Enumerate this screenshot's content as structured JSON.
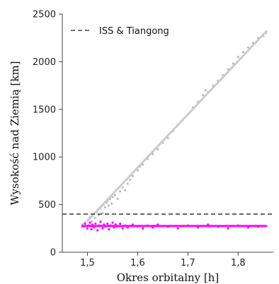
{
  "chart_data": {
    "type": "scatter",
    "title": "",
    "xlabel": "Okres orbitalny [h]",
    "ylabel": "Wysokość nad Ziemią [km]",
    "xlim": [
      1.45,
      1.87
    ],
    "ylim": [
      0,
      2500
    ],
    "x_ticks": [
      1.5,
      1.6,
      1.7,
      1.8
    ],
    "x_tick_labels": [
      "1,5",
      "1,6",
      "1,7",
      "1,8"
    ],
    "y_ticks": [
      0,
      500,
      1000,
      1500,
      2000,
      2500
    ],
    "y_tick_labels": [
      "0",
      "500",
      "1000",
      "1500",
      "2000",
      "2500"
    ],
    "grid": false,
    "legend_position": "top-left",
    "reference_line": {
      "label": "ISS & Tiangong",
      "y": 400,
      "style": "dashed",
      "color": "#222222"
    },
    "series": [
      {
        "color": "#bbbbbb",
        "kind": "points",
        "points": [
          [
            1.49,
            290
          ],
          [
            1.495,
            310
          ],
          [
            1.5,
            330
          ],
          [
            1.503,
            350
          ],
          [
            1.505,
            370
          ],
          [
            1.508,
            320
          ],
          [
            1.51,
            380
          ],
          [
            1.512,
            400
          ],
          [
            1.515,
            360
          ],
          [
            1.518,
            420
          ],
          [
            1.52,
            440
          ],
          [
            1.522,
            390
          ],
          [
            1.525,
            460
          ],
          [
            1.528,
            480
          ],
          [
            1.53,
            410
          ],
          [
            1.532,
            500
          ],
          [
            1.535,
            470
          ],
          [
            1.538,
            520
          ],
          [
            1.54,
            540
          ],
          [
            1.542,
            490
          ],
          [
            1.545,
            560
          ],
          [
            1.548,
            510
          ],
          [
            1.55,
            580
          ],
          [
            1.555,
            600
          ],
          [
            1.56,
            560
          ],
          [
            1.565,
            640
          ],
          [
            1.57,
            680
          ],
          [
            1.575,
            650
          ],
          [
            1.58,
            720
          ],
          [
            1.585,
            760
          ],
          [
            1.59,
            800
          ],
          [
            1.6,
            860
          ],
          [
            1.605,
            900
          ],
          [
            1.61,
            920
          ],
          [
            1.62,
            980
          ],
          [
            1.63,
            1030
          ],
          [
            1.64,
            1080
          ],
          [
            1.65,
            1150
          ],
          [
            1.66,
            1200
          ],
          [
            1.67,
            1270
          ],
          [
            1.68,
            1340
          ],
          [
            1.69,
            1390
          ],
          [
            1.7,
            1450
          ],
          [
            1.71,
            1520
          ],
          [
            1.72,
            1580
          ],
          [
            1.73,
            1650
          ],
          [
            1.735,
            1700
          ],
          [
            1.74,
            1680
          ],
          [
            1.75,
            1750
          ],
          [
            1.76,
            1800
          ],
          [
            1.77,
            1860
          ],
          [
            1.78,
            1920
          ],
          [
            1.79,
            1980
          ],
          [
            1.8,
            2050
          ],
          [
            1.81,
            2100
          ],
          [
            1.82,
            2150
          ],
          [
            1.83,
            2200
          ],
          [
            1.84,
            2250
          ],
          [
            1.85,
            2270
          ],
          [
            1.855,
            2300
          ]
        ]
      },
      {
        "color": "#cccccc",
        "kind": "fit-line",
        "points": [
          [
            1.5,
            330
          ],
          [
            1.856,
            2320
          ]
        ]
      },
      {
        "color": "#ff00ff",
        "kind": "points",
        "points": [
          [
            1.49,
            270
          ],
          [
            1.495,
            300
          ],
          [
            1.5,
            250
          ],
          [
            1.502,
            280
          ],
          [
            1.505,
            310
          ],
          [
            1.508,
            240
          ],
          [
            1.51,
            290
          ],
          [
            1.513,
            260
          ],
          [
            1.516,
            300
          ],
          [
            1.52,
            230
          ],
          [
            1.523,
            280
          ],
          [
            1.526,
            320
          ],
          [
            1.53,
            250
          ],
          [
            1.533,
            290
          ],
          [
            1.536,
            270
          ],
          [
            1.54,
            300
          ],
          [
            1.543,
            240
          ],
          [
            1.546,
            280
          ],
          [
            1.55,
            310
          ],
          [
            1.553,
            260
          ],
          [
            1.556,
            290
          ],
          [
            1.56,
            270
          ],
          [
            1.565,
            300
          ],
          [
            1.57,
            250
          ],
          [
            1.575,
            280
          ],
          [
            1.58,
            260
          ],
          [
            1.59,
            290
          ],
          [
            1.6,
            270
          ],
          [
            1.61,
            250
          ],
          [
            1.62,
            280
          ],
          [
            1.63,
            260
          ],
          [
            1.64,
            290
          ],
          [
            1.66,
            270
          ],
          [
            1.68,
            250
          ],
          [
            1.7,
            280
          ],
          [
            1.72,
            260
          ],
          [
            1.74,
            290
          ],
          [
            1.76,
            270
          ],
          [
            1.78,
            250
          ],
          [
            1.8,
            280
          ],
          [
            1.82,
            260
          ],
          [
            1.84,
            270
          ]
        ]
      },
      {
        "color": "#ff00ff",
        "kind": "fit-line",
        "points": [
          [
            1.49,
            275
          ],
          [
            1.856,
            275
          ]
        ]
      }
    ]
  }
}
